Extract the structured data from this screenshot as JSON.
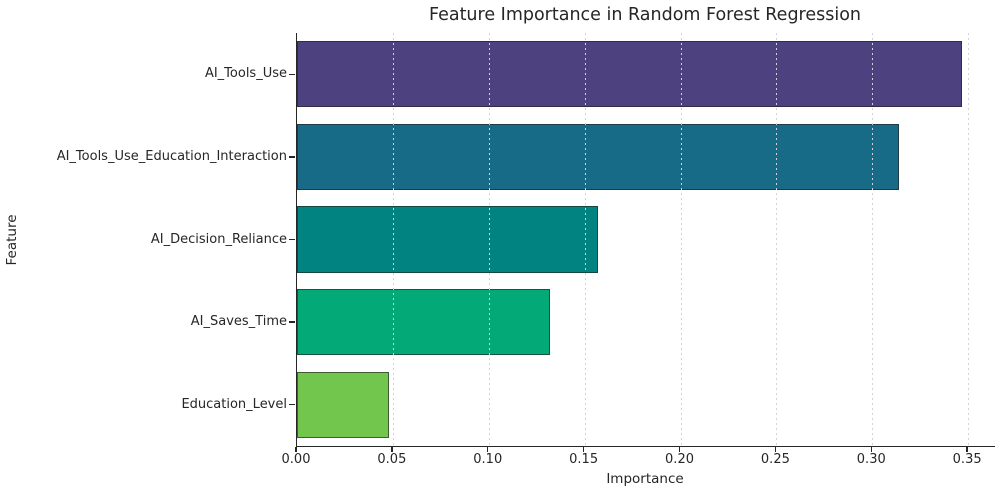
{
  "chart_data": {
    "type": "bar",
    "orientation": "horizontal",
    "title": "Feature Importance in Random Forest Regression",
    "xlabel": "Importance",
    "ylabel": "Feature",
    "categories": [
      "AI_Tools_Use",
      "AI_Tools_Use_Education_Interaction",
      "AI_Decision_Reliance",
      "AI_Saves_Time",
      "Education_Level"
    ],
    "values": [
      0.347,
      0.314,
      0.157,
      0.132,
      0.048
    ],
    "bar_colors": [
      "#4d4180",
      "#176b87",
      "#008381",
      "#04a978",
      "#72c64e"
    ],
    "xlim": [
      0,
      0.364
    ],
    "xticks": [
      0.0,
      0.05,
      0.1,
      0.15,
      0.2,
      0.25,
      0.3,
      0.35
    ],
    "xtick_labels": [
      "0.00",
      "0.05",
      "0.10",
      "0.15",
      "0.20",
      "0.25",
      "0.30",
      "0.35"
    ],
    "grid": "vertical-dotted",
    "grid_color": "#d2d2da",
    "axis_color": "#262626",
    "background_color": "#ffffff",
    "legend": "none",
    "bar_fill_fraction": 0.8
  }
}
